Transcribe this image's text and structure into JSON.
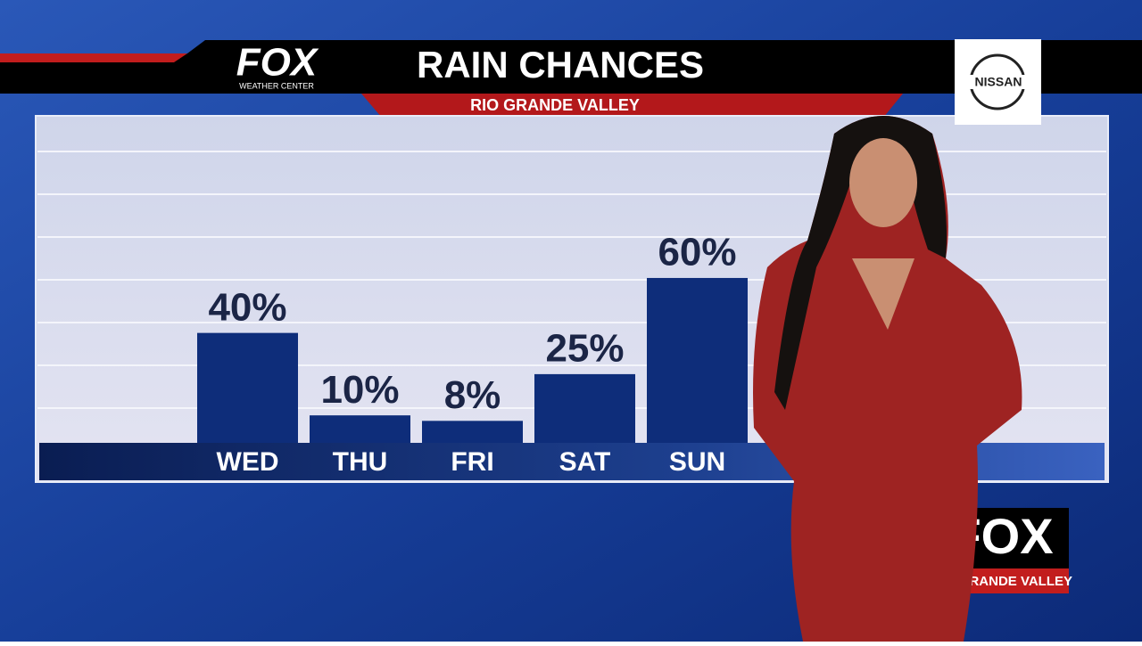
{
  "chart_data": {
    "type": "bar",
    "title": "RAIN CHANCES",
    "subtitle": "RIO GRANDE VALLEY",
    "categories": [
      "WED",
      "THU",
      "FRI",
      "SAT",
      "SUN"
    ],
    "values": [
      40,
      10,
      8,
      25,
      60
    ],
    "value_labels": [
      "40%",
      "10%",
      "8%",
      "25%",
      "60%"
    ],
    "color": "#0e2d7a",
    "ylim": [
      0,
      119
    ]
  },
  "branding": {
    "station_logo": "FOX",
    "station_sub": "WEATHER CENTER",
    "sponsor": "NISSAN",
    "bug_logo": "FOX",
    "bug_sub": "RIO GRANDE VALLEY"
  }
}
